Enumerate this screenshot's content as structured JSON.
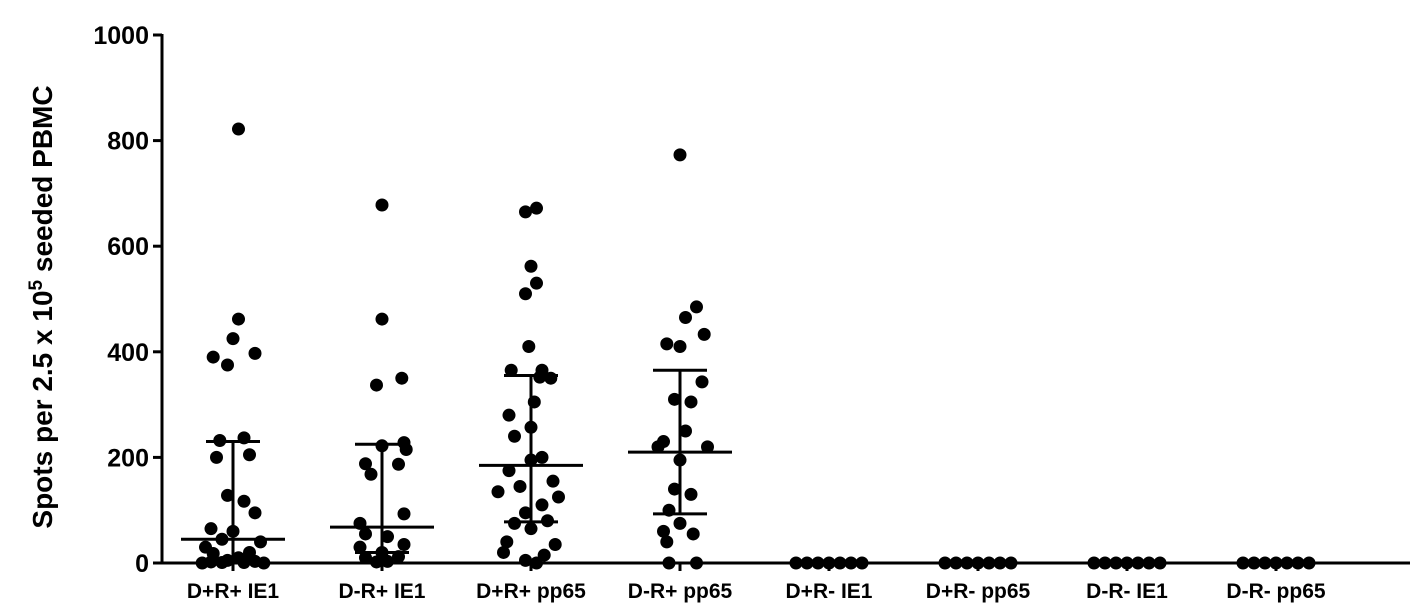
{
  "chart_data": {
    "type": "scatter",
    "title": "",
    "xlabel": "",
    "ylabel": {
      "prefix": "Spots per 2.5 x 10",
      "superscript": "5",
      "suffix": " seeded PBMC"
    },
    "ylim": [
      0,
      1000
    ],
    "yticks": [
      0,
      200,
      400,
      600,
      800,
      1000
    ],
    "grid": false,
    "legend": "none",
    "marker_color": "#000000",
    "categories": [
      "D+R+ IE1",
      "D-R+ IE1",
      "D+R+ pp65",
      "D-R+ pp65",
      "D+R- IE1",
      "D+R- pp65",
      "D-R- IE1",
      "D-R- pp65"
    ],
    "series": [
      {
        "category": "D+R+ IE1",
        "median": 45,
        "q1": 5,
        "q3": 230,
        "points": [
          [
            0.05,
            822
          ],
          [
            0.05,
            462
          ],
          [
            0.0,
            425
          ],
          [
            0.2,
            397
          ],
          [
            -0.18,
            390
          ],
          [
            -0.05,
            375
          ],
          [
            0.1,
            237
          ],
          [
            -0.12,
            232
          ],
          [
            -0.15,
            200
          ],
          [
            0.15,
            205
          ],
          [
            -0.05,
            128
          ],
          [
            0.1,
            117
          ],
          [
            0.2,
            95
          ],
          [
            -0.2,
            65
          ],
          [
            0.0,
            60
          ],
          [
            -0.1,
            45
          ],
          [
            0.25,
            40
          ],
          [
            -0.25,
            30
          ],
          [
            0.15,
            20
          ],
          [
            -0.18,
            18
          ],
          [
            0.05,
            10
          ],
          [
            -0.05,
            5
          ],
          [
            0.2,
            3
          ],
          [
            -0.2,
            2
          ],
          [
            0.1,
            1
          ],
          [
            -0.1,
            1
          ],
          [
            0.28,
            0
          ],
          [
            -0.28,
            0
          ]
        ]
      },
      {
        "category": "D-R+ IE1",
        "median": 68,
        "q1": 20,
        "q3": 225,
        "points": [
          [
            0.0,
            678
          ],
          [
            0.0,
            462
          ],
          [
            0.18,
            350
          ],
          [
            -0.05,
            337
          ],
          [
            0.2,
            228
          ],
          [
            0.0,
            222
          ],
          [
            0.22,
            215
          ],
          [
            -0.15,
            188
          ],
          [
            0.15,
            187
          ],
          [
            -0.1,
            168
          ],
          [
            0.2,
            93
          ],
          [
            -0.2,
            75
          ],
          [
            -0.15,
            55
          ],
          [
            0.05,
            50
          ],
          [
            0.2,
            35
          ],
          [
            -0.2,
            30
          ],
          [
            0.0,
            20
          ],
          [
            0.15,
            12
          ],
          [
            -0.15,
            10
          ],
          [
            0.05,
            3
          ],
          [
            -0.05,
            2
          ]
        ]
      },
      {
        "category": "D+R+ pp65",
        "median": 185,
        "q1": 78,
        "q3": 355,
        "points": [
          [
            -0.05,
            665
          ],
          [
            0.05,
            672
          ],
          [
            0.0,
            562
          ],
          [
            0.05,
            530
          ],
          [
            -0.05,
            510
          ],
          [
            -0.02,
            410
          ],
          [
            -0.18,
            365
          ],
          [
            0.1,
            365
          ],
          [
            0.08,
            352
          ],
          [
            0.18,
            350
          ],
          [
            0.03,
            305
          ],
          [
            -0.2,
            280
          ],
          [
            0.0,
            257
          ],
          [
            -0.15,
            240
          ],
          [
            0.1,
            200
          ],
          [
            0.0,
            195
          ],
          [
            -0.2,
            175
          ],
          [
            0.2,
            155
          ],
          [
            -0.1,
            145
          ],
          [
            -0.3,
            135
          ],
          [
            0.25,
            125
          ],
          [
            0.1,
            110
          ],
          [
            -0.05,
            95
          ],
          [
            0.15,
            80
          ],
          [
            -0.15,
            75
          ],
          [
            0.0,
            65
          ],
          [
            -0.22,
            40
          ],
          [
            0.22,
            35
          ],
          [
            -0.25,
            20
          ],
          [
            0.12,
            15
          ],
          [
            -0.05,
            5
          ],
          [
            0.05,
            0
          ]
        ]
      },
      {
        "category": "D-R+ pp65",
        "median": 210,
        "q1": 93,
        "q3": 365,
        "points": [
          [
            0.0,
            773
          ],
          [
            0.15,
            485
          ],
          [
            0.05,
            465
          ],
          [
            0.22,
            433
          ],
          [
            -0.12,
            415
          ],
          [
            0.0,
            410
          ],
          [
            0.2,
            343
          ],
          [
            -0.05,
            310
          ],
          [
            0.1,
            305
          ],
          [
            0.05,
            250
          ],
          [
            -0.15,
            230
          ],
          [
            -0.2,
            220
          ],
          [
            0.25,
            220
          ],
          [
            0.0,
            195
          ],
          [
            -0.05,
            140
          ],
          [
            0.1,
            130
          ],
          [
            -0.1,
            100
          ],
          [
            0.0,
            75
          ],
          [
            -0.15,
            60
          ],
          [
            0.12,
            55
          ],
          [
            -0.12,
            40
          ],
          [
            0.15,
            0
          ],
          [
            -0.1,
            0
          ]
        ]
      },
      {
        "category": "D+R- IE1",
        "median": 0,
        "q1": 0,
        "q3": 0,
        "points": [
          [
            -0.3,
            0
          ],
          [
            -0.2,
            0
          ],
          [
            -0.1,
            0
          ],
          [
            0.0,
            0
          ],
          [
            0.1,
            0
          ],
          [
            0.2,
            0
          ],
          [
            0.3,
            0
          ]
        ]
      },
      {
        "category": "D+R- pp65",
        "median": 0,
        "q1": 0,
        "q3": 0,
        "points": [
          [
            -0.3,
            0
          ],
          [
            -0.2,
            0
          ],
          [
            -0.1,
            0
          ],
          [
            0.0,
            0
          ],
          [
            0.1,
            0
          ],
          [
            0.2,
            0
          ],
          [
            0.3,
            0
          ]
        ]
      },
      {
        "category": "D-R- IE1",
        "median": 0,
        "q1": 0,
        "q3": 0,
        "points": [
          [
            -0.3,
            0
          ],
          [
            -0.2,
            0
          ],
          [
            -0.1,
            0
          ],
          [
            0.0,
            0
          ],
          [
            0.1,
            0
          ],
          [
            0.2,
            0
          ],
          [
            0.3,
            0
          ]
        ]
      },
      {
        "category": "D-R- pp65",
        "median": 0,
        "q1": 0,
        "q3": 0,
        "points": [
          [
            -0.3,
            0
          ],
          [
            -0.2,
            0
          ],
          [
            -0.1,
            0
          ],
          [
            0.0,
            0
          ],
          [
            0.1,
            0
          ],
          [
            0.2,
            0
          ],
          [
            0.3,
            0
          ]
        ]
      }
    ]
  }
}
